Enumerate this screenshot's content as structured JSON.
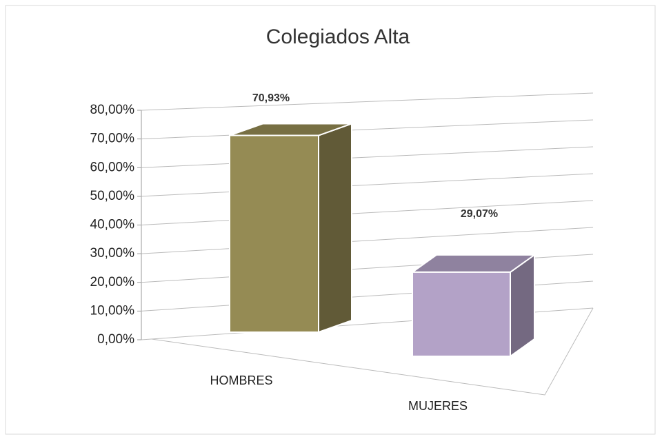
{
  "chart_data": {
    "type": "bar3d",
    "title": "Colegiados Alta",
    "categories": [
      "HOMBRES",
      "MUJERES"
    ],
    "values": [
      70.93,
      29.07
    ],
    "value_labels": [
      "70,93%",
      "29,07%"
    ],
    "colors": [
      "#958b54",
      "#b3a2c7"
    ],
    "ylim": [
      0,
      80
    ],
    "yticks": [
      {
        "value": 0,
        "label": "0,00%"
      },
      {
        "value": 10,
        "label": "10,00%"
      },
      {
        "value": 20,
        "label": "20,00%"
      },
      {
        "value": 30,
        "label": "30,00%"
      },
      {
        "value": 40,
        "label": "40,00%"
      },
      {
        "value": 50,
        "label": "50,00%"
      },
      {
        "value": 60,
        "label": "60,00%"
      },
      {
        "value": 70,
        "label": "70,00%"
      },
      {
        "value": 80,
        "label": "80,00%"
      }
    ],
    "grid": true
  }
}
